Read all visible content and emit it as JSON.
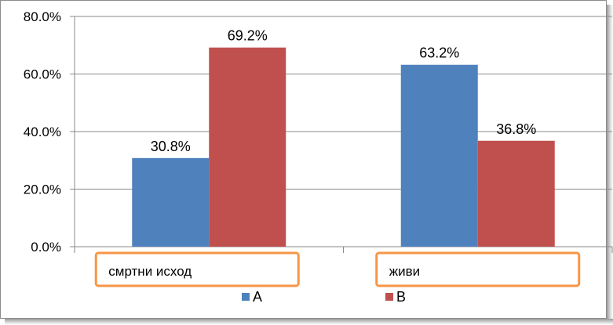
{
  "chart_data": {
    "type": "bar",
    "categories": [
      "смртни исход",
      "живи"
    ],
    "series": [
      {
        "name": "A",
        "values": [
          30.8,
          63.2
        ],
        "color": "#4f81bd"
      },
      {
        "name": "B",
        "values": [
          69.2,
          36.8
        ],
        "color": "#c0504d"
      }
    ],
    "data_labels": [
      [
        "30.8%",
        "63.2%"
      ],
      [
        "69.2%",
        "36.8%"
      ]
    ],
    "y_ticks": [
      0,
      20,
      40,
      60,
      80
    ],
    "y_tick_labels": [
      "0.0%",
      "20.0%",
      "40.0%",
      "60.0%",
      "80.0%"
    ],
    "ylim": [
      0,
      80
    ],
    "grid": true,
    "legend_position": "bottom",
    "category_box_color": "#f79646",
    "title": "",
    "xlabel": "",
    "ylabel": ""
  }
}
